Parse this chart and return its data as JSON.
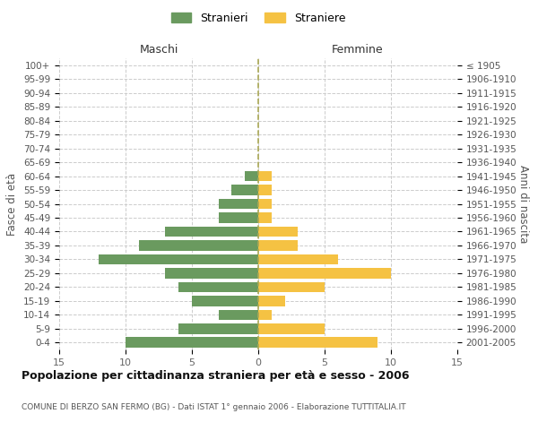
{
  "age_groups": [
    "0-4",
    "5-9",
    "10-14",
    "15-19",
    "20-24",
    "25-29",
    "30-34",
    "35-39",
    "40-44",
    "45-49",
    "50-54",
    "55-59",
    "60-64",
    "65-69",
    "70-74",
    "75-79",
    "80-84",
    "85-89",
    "90-94",
    "95-99",
    "100+"
  ],
  "birth_years": [
    "2001-2005",
    "1996-2000",
    "1991-1995",
    "1986-1990",
    "1981-1985",
    "1976-1980",
    "1971-1975",
    "1966-1970",
    "1961-1965",
    "1956-1960",
    "1951-1955",
    "1946-1950",
    "1941-1945",
    "1936-1940",
    "1931-1935",
    "1926-1930",
    "1921-1925",
    "1916-1920",
    "1911-1915",
    "1906-1910",
    "≤ 1905"
  ],
  "males": [
    10,
    6,
    3,
    5,
    6,
    7,
    12,
    9,
    7,
    3,
    3,
    2,
    1,
    0,
    0,
    0,
    0,
    0,
    0,
    0,
    0
  ],
  "females": [
    9,
    5,
    1,
    2,
    5,
    10,
    6,
    3,
    3,
    1,
    1,
    1,
    1,
    0,
    0,
    0,
    0,
    0,
    0,
    0,
    0
  ],
  "male_color": "#6a9a5f",
  "female_color": "#f5c243",
  "male_label": "Stranieri",
  "female_label": "Straniere",
  "title": "Popolazione per cittadinanza straniera per età e sesso - 2006",
  "subtitle": "COMUNE DI BERZO SAN FERMO (BG) - Dati ISTAT 1° gennaio 2006 - Elaborazione TUTTITALIA.IT",
  "left_header": "Maschi",
  "right_header": "Femmine",
  "left_ylabel": "Fasce di età",
  "right_ylabel": "Anni di nascita",
  "xlim": 15,
  "background_color": "#ffffff",
  "grid_color": "#cccccc"
}
